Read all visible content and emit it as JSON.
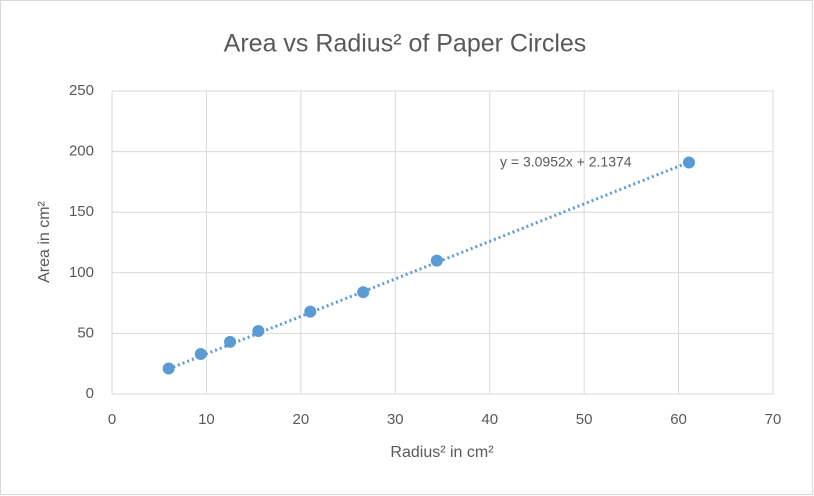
{
  "chart_data": {
    "type": "scatter",
    "title": "Area vs Radius² of Paper Circles",
    "x_label": "Radius² in cm²",
    "y_label": "Area in cm²",
    "series": [
      {
        "name": "Area",
        "color": "#5b9bd5",
        "x": [
          6,
          9.4,
          12.5,
          15.5,
          21,
          26.6,
          34.4,
          61.1
        ],
        "values": [
          21,
          33,
          43,
          52,
          68,
          84,
          110,
          191
        ]
      }
    ],
    "trendline": {
      "slope": 3.0952,
      "intercept": 2.1374,
      "label": "y = 3.0952x + 2.1374"
    },
    "xlim": [
      0,
      70
    ],
    "xticks": [
      0,
      10,
      20,
      30,
      40,
      50,
      60,
      70
    ],
    "ylim": [
      0,
      250
    ],
    "yticks": [
      0,
      50,
      100,
      150,
      200,
      250
    ],
    "grid": true
  }
}
